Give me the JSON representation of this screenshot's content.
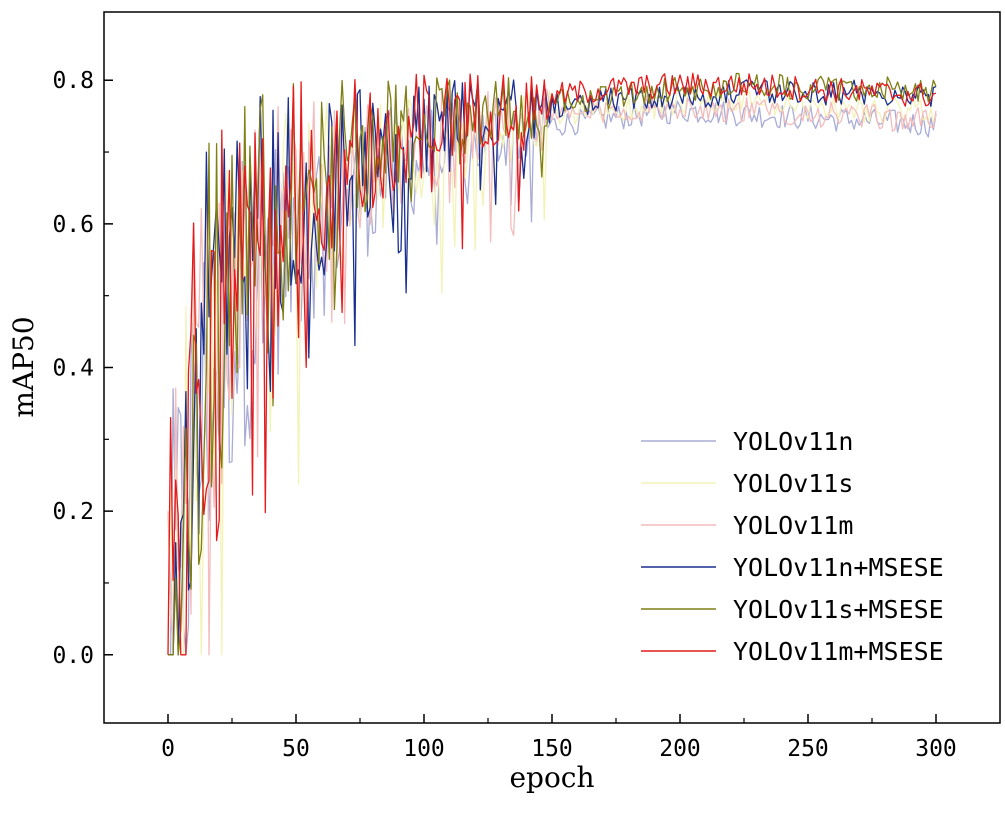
{
  "chart_data": {
    "type": "line",
    "title": "",
    "xlabel": "epoch",
    "ylabel": "mAP50",
    "xlim": [
      -25,
      325
    ],
    "ylim": [
      -0.095,
      0.895
    ],
    "xticks": [
      0,
      50,
      100,
      150,
      200,
      250,
      300
    ],
    "xtick_labels": [
      "0",
      "50",
      "100",
      "150",
      "200",
      "250",
      "300"
    ],
    "yticks": [
      0.0,
      0.2,
      0.4,
      0.6,
      0.8
    ],
    "ytick_labels": [
      "0.0",
      "0.2",
      "0.4",
      "0.6",
      "0.8"
    ],
    "grid": false,
    "legend": "bottom-right",
    "series": [
      {
        "name": "YOLOv11n",
        "color": "#a9acd6",
        "x": [
          0,
          5,
          10,
          15,
          20,
          30,
          40,
          50,
          60,
          75,
          90,
          110,
          130,
          150,
          175,
          200,
          225,
          250,
          275,
          300
        ],
        "y": [
          0.0,
          0.15,
          0.3,
          0.38,
          0.45,
          0.52,
          0.57,
          0.6,
          0.63,
          0.66,
          0.69,
          0.71,
          0.73,
          0.74,
          0.75,
          0.76,
          0.755,
          0.75,
          0.745,
          0.74
        ]
      },
      {
        "name": "YOLOv11s",
        "color": "#f3f3b8",
        "x": [
          0,
          5,
          10,
          15,
          20,
          30,
          40,
          50,
          60,
          75,
          90,
          110,
          130,
          150,
          175,
          200,
          225,
          250,
          275,
          300
        ],
        "y": [
          0.0,
          0.16,
          0.32,
          0.4,
          0.47,
          0.54,
          0.59,
          0.62,
          0.65,
          0.68,
          0.7,
          0.72,
          0.74,
          0.75,
          0.76,
          0.77,
          0.77,
          0.765,
          0.76,
          0.76
        ]
      },
      {
        "name": "YOLOv11m",
        "color": "#f4bcbc",
        "x": [
          0,
          5,
          10,
          15,
          20,
          30,
          40,
          50,
          60,
          75,
          90,
          110,
          130,
          150,
          175,
          200,
          225,
          250,
          275,
          300
        ],
        "y": [
          0.2,
          0.18,
          0.33,
          0.41,
          0.48,
          0.55,
          0.6,
          0.63,
          0.66,
          0.69,
          0.71,
          0.73,
          0.74,
          0.75,
          0.76,
          0.765,
          0.76,
          0.755,
          0.75,
          0.745
        ]
      },
      {
        "name": "YOLOv11n+MSESE",
        "color": "#1a2f8f",
        "x": [
          0,
          5,
          10,
          15,
          20,
          30,
          40,
          50,
          60,
          75,
          90,
          110,
          130,
          150,
          175,
          200,
          225,
          250,
          275,
          300
        ],
        "y": [
          0.0,
          0.2,
          0.35,
          0.45,
          0.52,
          0.58,
          0.62,
          0.65,
          0.67,
          0.7,
          0.72,
          0.74,
          0.755,
          0.765,
          0.775,
          0.78,
          0.785,
          0.785,
          0.785,
          0.78
        ]
      },
      {
        "name": "YOLOv11s+MSESE",
        "color": "#7f7f14",
        "x": [
          0,
          5,
          10,
          15,
          20,
          30,
          40,
          50,
          60,
          75,
          90,
          110,
          130,
          150,
          175,
          200,
          225,
          250,
          275,
          300
        ],
        "y": [
          0.0,
          0.22,
          0.37,
          0.46,
          0.53,
          0.59,
          0.63,
          0.66,
          0.68,
          0.71,
          0.73,
          0.745,
          0.76,
          0.77,
          0.78,
          0.79,
          0.795,
          0.79,
          0.79,
          0.785
        ]
      },
      {
        "name": "YOLOv11m+MSESE",
        "color": "#e41a1c",
        "x": [
          0,
          5,
          10,
          15,
          20,
          30,
          40,
          50,
          60,
          75,
          90,
          110,
          130,
          150,
          175,
          200,
          225,
          250,
          275,
          300
        ],
        "y": [
          0.0,
          0.21,
          0.36,
          0.46,
          0.53,
          0.6,
          0.64,
          0.67,
          0.69,
          0.72,
          0.74,
          0.755,
          0.77,
          0.78,
          0.79,
          0.795,
          0.795,
          0.79,
          0.785,
          0.78
        ]
      }
    ]
  }
}
